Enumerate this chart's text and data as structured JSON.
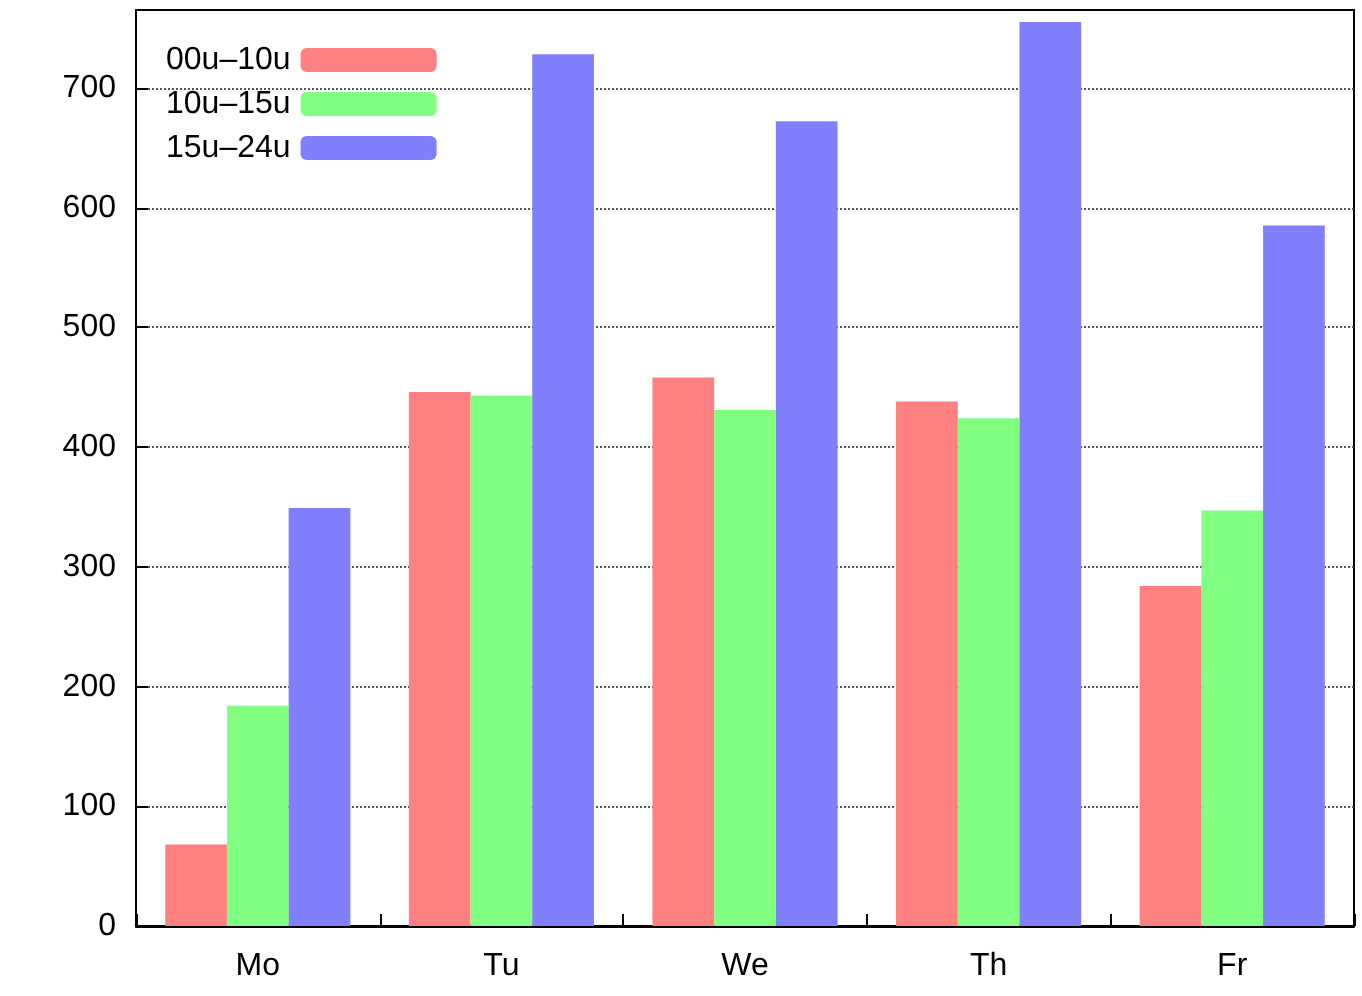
{
  "chart_data": {
    "type": "bar",
    "categories": [
      "Mo",
      "Tu",
      "We",
      "Th",
      "Fr"
    ],
    "series": [
      {
        "name": "00u–10u",
        "color": "#ff8080",
        "values": [
          68,
          446,
          458,
          438,
          284
        ]
      },
      {
        "name": "10u–15u",
        "color": "#80ff80",
        "values": [
          184,
          443,
          431,
          424,
          347
        ]
      },
      {
        "name": "15u–24u",
        "color": "#8080ff",
        "values": [
          349,
          728,
          672,
          755,
          585
        ]
      }
    ],
    "ylim": [
      0,
      765
    ],
    "yticks": [
      0,
      100,
      200,
      300,
      400,
      500,
      600,
      700
    ],
    "grid": "y",
    "legend": "top left"
  }
}
